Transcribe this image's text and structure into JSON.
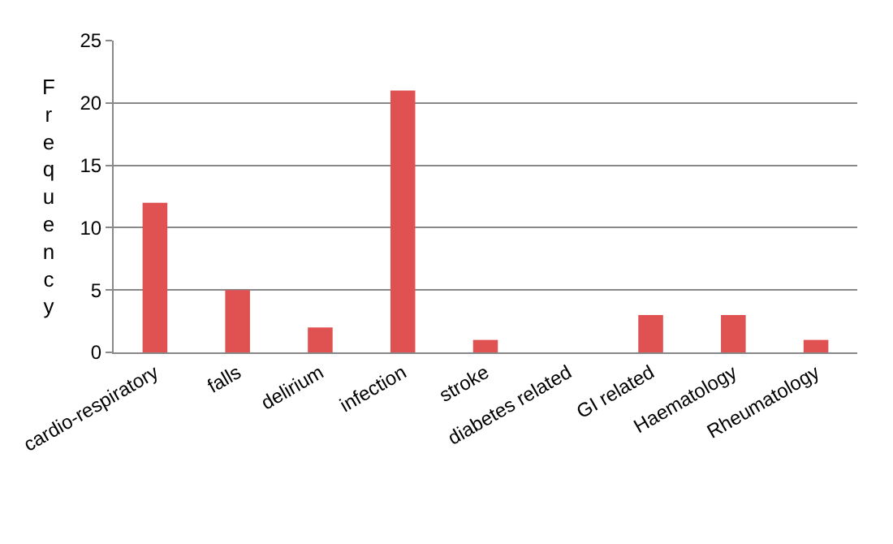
{
  "chart_data": {
    "type": "bar",
    "ylabel": "Frequency",
    "categories": [
      "cardio-respiratory",
      "falls",
      "delirium",
      "infection",
      "stroke",
      "diabetes related",
      "GI related",
      "Haematology",
      "Rheumatology"
    ],
    "values": [
      12,
      5,
      2,
      21,
      1,
      0,
      3,
      3,
      1
    ],
    "color": "#e05252",
    "ylim": [
      0,
      25
    ],
    "yticks": [
      0,
      5,
      10,
      15,
      20,
      25
    ],
    "grid": "y"
  }
}
